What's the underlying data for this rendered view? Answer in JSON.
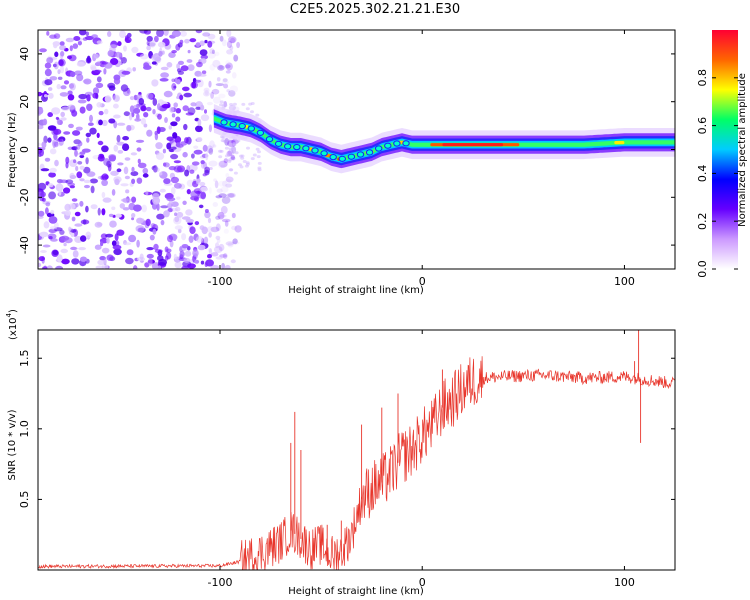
{
  "title": "C2E5.2025.302.21.21.E30",
  "chart_data": [
    {
      "type": "heatmap",
      "xlabel": "Height of straight line (km)",
      "ylabel": "Frequency (Hz)",
      "xlim": [
        -190,
        125
      ],
      "ylim": [
        -50,
        50
      ],
      "xticks": [
        -100,
        0,
        100
      ],
      "xtick_labels": [
        "-100",
        "0",
        "100"
      ],
      "yticks": [
        -40,
        -20,
        0,
        20,
        40
      ],
      "ytick_labels": [
        "-40",
        "-20",
        "0",
        "20",
        "40"
      ],
      "colorbar": {
        "label": "Normalized spectral amplitude",
        "range": [
          0.0,
          1.0
        ],
        "ticks": [
          0.0,
          0.2,
          0.4,
          0.6,
          0.8
        ],
        "tick_labels": [
          "0.0",
          "0.2",
          "0.4",
          "0.6",
          "0.8"
        ],
        "colors": [
          "#ffffff",
          "#cc99ff",
          "#6600ff",
          "#0000ff",
          "#00ccff",
          "#00ff66",
          "#ffff00",
          "#ff6600",
          "#ff0033"
        ]
      },
      "ridge": {
        "x": [
          -103,
          -97,
          -90,
          -85,
          -80,
          -75,
          -70,
          -65,
          -60,
          -55,
          -50,
          -45,
          -40,
          -35,
          -30,
          -25,
          -20,
          -15,
          -10,
          -5,
          0,
          10,
          20,
          40,
          60,
          80,
          100,
          110,
          125
        ],
        "y": [
          13,
          11,
          10,
          9,
          7,
          4,
          2,
          1,
          1,
          0,
          -1,
          -3,
          -4,
          -3,
          -2,
          -1,
          1,
          2,
          3,
          2,
          2,
          2,
          2,
          2,
          2,
          2,
          3,
          3,
          3
        ]
      },
      "noise_region_x": [
        -190,
        -95
      ]
    },
    {
      "type": "line",
      "xlabel": "Height of straight line (km)",
      "ylabel": "SNR (10 * v/v)",
      "scale_label": "(x10",
      "scale_exponent": "4",
      "scale_close": ")",
      "xlim": [
        -190,
        125
      ],
      "ylim": [
        0,
        17000
      ],
      "xticks": [
        -100,
        0,
        100
      ],
      "xtick_labels": [
        "-100",
        "0",
        "100"
      ],
      "yticks": [
        5000,
        10000,
        15000
      ],
      "ytick_labels": [
        "0.5",
        "1.0",
        "1.5"
      ],
      "series_color": "#e8362c",
      "trend": {
        "x": [
          -190,
          -100,
          -90,
          -80,
          -70,
          -65,
          -60,
          -55,
          -50,
          -45,
          -40,
          -35,
          -30,
          -25,
          -20,
          -15,
          -10,
          -5,
          0,
          5,
          10,
          15,
          20,
          25,
          30,
          40,
          60,
          80,
          100,
          110,
          125
        ],
        "y": [
          250,
          300,
          600,
          1200,
          2000,
          2800,
          2200,
          1500,
          1800,
          1000,
          1300,
          2500,
          5000,
          5800,
          6200,
          7000,
          8000,
          8500,
          9500,
          10200,
          11500,
          12000,
          12800,
          13400,
          13600,
          13700,
          13800,
          13600,
          13700,
          13500,
          13200
        ]
      },
      "spikes": [
        {
          "x": -65,
          "y": 9000
        },
        {
          "x": -63,
          "y": 11200
        },
        {
          "x": -60,
          "y": 8500
        },
        {
          "x": -47,
          "y": 3200
        },
        {
          "x": -40,
          "y": 3500
        },
        {
          "x": -30,
          "y": 10300
        },
        {
          "x": -20,
          "y": 11500
        },
        {
          "x": -12,
          "y": 12500
        },
        {
          "x": 10,
          "y": 14200
        },
        {
          "x": 105,
          "y": 14800
        },
        {
          "x": 107,
          "y": 17000
        },
        {
          "x": 108,
          "y": 9000
        }
      ]
    }
  ]
}
